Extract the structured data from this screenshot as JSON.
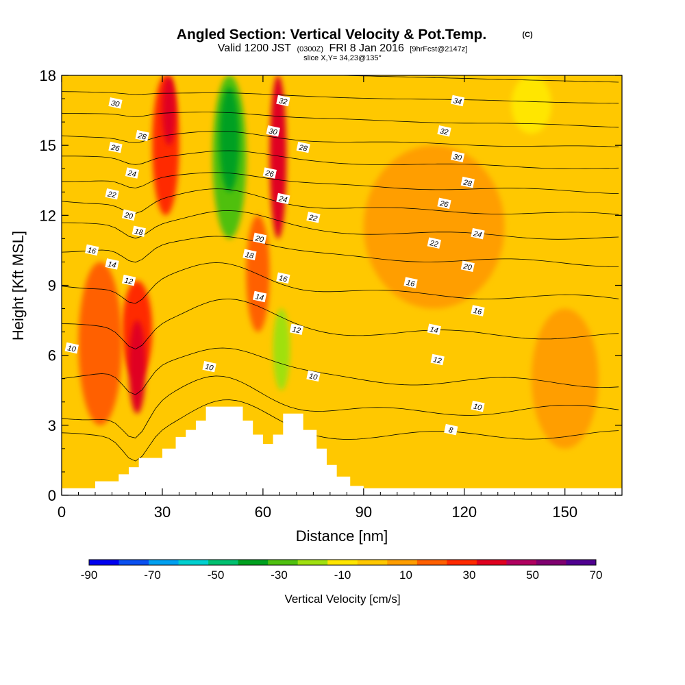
{
  "header": {
    "title_main": "Angled Section: Vertical Velocity & Pot.Temp.",
    "title_mark": "(C)",
    "valid_prefix": "Valid 1200 JST",
    "valid_utc": "(0300Z)",
    "valid_date": "FRI 8 Jan 2016",
    "valid_fcst": "[9hrFcst@2147z]",
    "slice": "slice X,Y= 34,23@135°"
  },
  "chart_data": {
    "type": "heatmap",
    "xlabel": "Distance [nm]",
    "ylabel": "Height [Kft MSL]",
    "xlim": [
      0,
      167
    ],
    "ylim": [
      0,
      18
    ],
    "x_ticks": [
      0,
      30,
      60,
      90,
      120,
      150
    ],
    "y_ticks": [
      0,
      3,
      6,
      9,
      12,
      15,
      18
    ],
    "colorbar": {
      "label": "Vertical Velocity [cm/s]",
      "ticks": [
        -90,
        -70,
        -50,
        -30,
        -10,
        10,
        30,
        50,
        70
      ],
      "bounds": [
        -90,
        70
      ],
      "colors": [
        "#0000f0",
        "#0a50f0",
        "#00a0f0",
        "#00d0d0",
        "#00c070",
        "#00a020",
        "#50c010",
        "#a0e010",
        "#ffe600",
        "#ffc800",
        "#ff9e00",
        "#ff6000",
        "#ff2a00",
        "#e00020",
        "#b00060",
        "#800070",
        "#500090"
      ]
    },
    "terrain": {
      "x": [
        0,
        10,
        10,
        17,
        17,
        20,
        20,
        23,
        23,
        30,
        30,
        34,
        34,
        37,
        37,
        40,
        40,
        43,
        43,
        46,
        46,
        54,
        54,
        57,
        57,
        60,
        60,
        63,
        63,
        66,
        66,
        72,
        72,
        76,
        76,
        79,
        79,
        82,
        82,
        86,
        86,
        90,
        90,
        167
      ],
      "y": [
        0.3,
        0.3,
        0.6,
        0.6,
        0.9,
        0.9,
        1.2,
        1.2,
        1.6,
        1.6,
        2.0,
        2.0,
        2.5,
        2.5,
        2.8,
        2.8,
        3.2,
        3.2,
        3.8,
        3.8,
        3.8,
        3.8,
        3.2,
        3.2,
        2.6,
        2.6,
        2.2,
        2.2,
        2.6,
        2.6,
        3.5,
        3.5,
        2.8,
        2.8,
        2.0,
        2.0,
        1.3,
        1.3,
        0.8,
        0.8,
        0.4,
        0.4,
        0.3,
        0.3
      ]
    },
    "velocity_cells": [
      {
        "x": [
          18,
          27
        ],
        "y": [
          5.0,
          9.2
        ],
        "w": 30
      },
      {
        "x": [
          20,
          25
        ],
        "y": [
          3.5,
          7.5
        ],
        "w": 40
      },
      {
        "x": [
          27,
          35
        ],
        "y": [
          12,
          18
        ],
        "w": 25
      },
      {
        "x": [
          30,
          34
        ],
        "y": [
          15,
          18
        ],
        "w": 35
      },
      {
        "x": [
          45,
          55
        ],
        "y": [
          11,
          18
        ],
        "w": -25
      },
      {
        "x": [
          47,
          53
        ],
        "y": [
          13,
          17.5
        ],
        "w": -35
      },
      {
        "x": [
          62,
          67
        ],
        "y": [
          11,
          18
        ],
        "w": 35
      },
      {
        "x": [
          63,
          68
        ],
        "y": [
          4.5,
          8.0
        ],
        "w": -20
      },
      {
        "x": [
          134,
          146
        ],
        "y": [
          15.5,
          18
        ],
        "w": -10
      },
      {
        "x": [
          5,
          18
        ],
        "y": [
          3,
          10
        ],
        "w": 15
      },
      {
        "x": [
          55,
          62
        ],
        "y": [
          7,
          12
        ],
        "w": 20
      },
      {
        "x": [
          90,
          132
        ],
        "y": [
          8,
          15
        ],
        "w": 12
      },
      {
        "x": [
          140,
          160
        ],
        "y": [
          2,
          8
        ],
        "w": 12
      }
    ],
    "theta_isentropes": [
      {
        "value": 8,
        "y0": 2.5,
        "y1": 2.6
      },
      {
        "value": 10,
        "y0": 3.4,
        "y1": 3.7
      },
      {
        "value": 12,
        "y0": 5.1,
        "y1": 4.8
      },
      {
        "value": 14,
        "y0": 7.2,
        "y1": 6.8
      },
      {
        "value": 16,
        "y0": 9.0,
        "y1": 8.4
      },
      {
        "value": 18,
        "y0": 10.5,
        "y1": 9.9
      },
      {
        "value": 20,
        "y0": 11.6,
        "y1": 11.0
      },
      {
        "value": 22,
        "y0": 12.6,
        "y1": 12.0
      },
      {
        "value": 24,
        "y0": 13.5,
        "y1": 13.0
      },
      {
        "value": 26,
        "y0": 14.5,
        "y1": 14.0
      },
      {
        "value": 28,
        "y0": 15.4,
        "y1": 14.9
      },
      {
        "value": 30,
        "y0": 16.4,
        "y1": 15.8
      },
      {
        "value": 32,
        "y0": 17.3,
        "y1": 16.8
      },
      {
        "value": 34,
        "y0": 18.3,
        "y1": 17.7
      }
    ],
    "contour_labels": [
      {
        "text": "30",
        "x": 16,
        "y": 16.8
      },
      {
        "text": "26",
        "x": 16,
        "y": 14.9
      },
      {
        "text": "22",
        "x": 15,
        "y": 12.9
      },
      {
        "text": "16",
        "x": 9,
        "y": 10.5
      },
      {
        "text": "14",
        "x": 15,
        "y": 9.9
      },
      {
        "text": "10",
        "x": 3,
        "y": 6.3
      },
      {
        "text": "28",
        "x": 24,
        "y": 15.4
      },
      {
        "text": "24",
        "x": 21,
        "y": 13.8
      },
      {
        "text": "20",
        "x": 20,
        "y": 12.0
      },
      {
        "text": "18",
        "x": 23,
        "y": 11.3
      },
      {
        "text": "12",
        "x": 20,
        "y": 9.2
      },
      {
        "text": "10",
        "x": 44,
        "y": 5.5
      },
      {
        "text": "32",
        "x": 66,
        "y": 16.9
      },
      {
        "text": "30",
        "x": 63,
        "y": 15.6
      },
      {
        "text": "28",
        "x": 72,
        "y": 14.9
      },
      {
        "text": "26",
        "x": 62,
        "y": 13.8
      },
      {
        "text": "24",
        "x": 66,
        "y": 12.7
      },
      {
        "text": "22",
        "x": 75,
        "y": 11.9
      },
      {
        "text": "20",
        "x": 59,
        "y": 11.0
      },
      {
        "text": "18",
        "x": 56,
        "y": 10.3
      },
      {
        "text": "16",
        "x": 66,
        "y": 9.3
      },
      {
        "text": "14",
        "x": 59,
        "y": 8.5
      },
      {
        "text": "12",
        "x": 70,
        "y": 7.1
      },
      {
        "text": "10",
        "x": 75,
        "y": 5.1
      },
      {
        "text": "34",
        "x": 118,
        "y": 16.9
      },
      {
        "text": "32",
        "x": 114,
        "y": 15.6
      },
      {
        "text": "30",
        "x": 118,
        "y": 14.5
      },
      {
        "text": "28",
        "x": 121,
        "y": 13.4
      },
      {
        "text": "26",
        "x": 114,
        "y": 12.5
      },
      {
        "text": "24",
        "x": 124,
        "y": 11.2
      },
      {
        "text": "22",
        "x": 111,
        "y": 10.8
      },
      {
        "text": "20",
        "x": 121,
        "y": 9.8
      },
      {
        "text": "16",
        "x": 104,
        "y": 9.1
      },
      {
        "text": "16",
        "x": 124,
        "y": 7.9
      },
      {
        "text": "14",
        "x": 111,
        "y": 7.1
      },
      {
        "text": "12",
        "x": 112,
        "y": 5.8
      },
      {
        "text": "10",
        "x": 124,
        "y": 3.8
      },
      {
        "text": "8",
        "x": 116,
        "y": 2.8
      }
    ]
  }
}
